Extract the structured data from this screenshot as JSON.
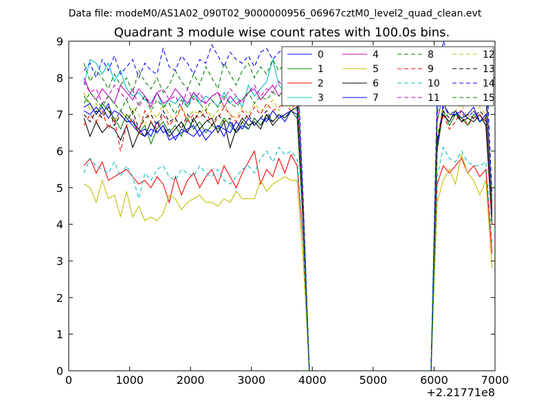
{
  "supertitle": "Data file: modeM0/AS1A02_090T02_9000000956_06967cztM0_level2_quad_clean.evt",
  "chart_data": {
    "type": "line",
    "title": "Quadrant 3 module wise count rates with 100.0s bins.",
    "xlabel": "",
    "ylabel": "",
    "x_offset_label": "+2.21771e8",
    "xlim": [
      0,
      7000
    ],
    "ylim": [
      0,
      9
    ],
    "xticks": [
      "0",
      "1000",
      "2000",
      "3000",
      "4000",
      "5000",
      "6000",
      "7000"
    ],
    "yticks": [
      "0",
      "1",
      "2",
      "3",
      "4",
      "5",
      "6",
      "7",
      "8",
      "9"
    ],
    "grid": false,
    "legend_position": "top-right",
    "x": [
      250,
      350,
      450,
      550,
      650,
      750,
      850,
      950,
      1050,
      1150,
      1250,
      1350,
      1450,
      1550,
      1650,
      1750,
      1850,
      1950,
      2050,
      2150,
      2250,
      2350,
      2450,
      2550,
      2650,
      2750,
      2850,
      2950,
      3050,
      3150,
      3250,
      3350,
      3450,
      3550,
      3650,
      3750,
      3850,
      3950,
      4050,
      4150,
      4250,
      4350,
      4450,
      4550,
      4650,
      4750,
      4850,
      4950,
      5050,
      5150,
      5250,
      5350,
      5450,
      5550,
      5650,
      5750,
      5850,
      5950,
      6050,
      6150,
      6250,
      6350,
      6450,
      6550,
      6650,
      6750,
      6850,
      6950
    ],
    "series": [
      {
        "name": "0",
        "color": "#0000ff",
        "dash": "solid",
        "values": [
          7.1,
          7.0,
          7.2,
          7.0,
          7.3,
          6.8,
          7.1,
          6.9,
          6.7,
          6.5,
          6.6,
          6.4,
          6.8,
          6.5,
          6.6,
          6.3,
          6.6,
          6.5,
          6.4,
          6.6,
          6.3,
          6.5,
          6.7,
          6.4,
          6.8,
          6.5,
          6.7,
          6.6,
          6.9,
          6.7,
          6.9,
          6.8,
          7.0,
          6.8,
          7.1,
          7.0,
          4.0,
          0,
          0,
          0,
          0,
          0,
          0,
          0,
          0,
          0,
          0,
          0,
          0,
          0,
          0,
          0,
          0,
          0,
          0,
          0,
          0,
          0,
          6.1,
          7.3,
          7.0,
          7.1,
          6.9,
          7.0,
          7.2,
          6.8,
          7.0,
          4.3
        ]
      },
      {
        "name": "1",
        "color": "#008000",
        "dash": "solid",
        "values": [
          7.5,
          7.3,
          7.0,
          7.3,
          7.1,
          6.9,
          6.6,
          7.0,
          6.8,
          6.5,
          6.7,
          6.2,
          6.6,
          6.8,
          6.5,
          6.7,
          6.4,
          6.9,
          6.6,
          6.8,
          6.5,
          6.7,
          6.6,
          6.9,
          6.7,
          6.5,
          6.8,
          6.6,
          6.9,
          6.7,
          7.0,
          6.8,
          7.0,
          6.9,
          7.1,
          6.9,
          4.1,
          0,
          0,
          0,
          0,
          0,
          0,
          0,
          0,
          0,
          0,
          0,
          0,
          0,
          0,
          0,
          0,
          0,
          0,
          0,
          0,
          0,
          6.0,
          7.1,
          6.7,
          7.0,
          6.9,
          6.7,
          7.0,
          6.8,
          6.9,
          4.2
        ]
      },
      {
        "name": "2",
        "color": "#ff0000",
        "dash": "solid",
        "values": [
          5.6,
          5.8,
          5.4,
          5.7,
          5.2,
          5.3,
          5.4,
          5.5,
          5.3,
          5.1,
          5.2,
          5.0,
          5.3,
          5.1,
          4.6,
          5.3,
          4.8,
          5.2,
          5.4,
          5.0,
          5.3,
          5.5,
          5.1,
          5.6,
          5.3,
          5.0,
          5.4,
          5.7,
          6.0,
          5.1,
          5.5,
          5.3,
          5.8,
          5.4,
          5.9,
          5.6,
          3.5,
          0,
          0,
          0,
          0,
          0,
          0,
          0,
          0,
          0,
          0,
          0,
          0,
          0,
          0,
          0,
          0,
          0,
          0,
          0,
          0,
          0,
          5.1,
          5.6,
          5.4,
          5.6,
          5.8,
          5.4,
          5.6,
          5.3,
          5.5,
          3.2
        ]
      },
      {
        "name": "3",
        "color": "#00bfbf",
        "dash": "solid",
        "values": [
          7.8,
          8.5,
          8.4,
          8.1,
          8.4,
          7.9,
          8.2,
          7.7,
          7.5,
          7.6,
          7.4,
          7.3,
          7.6,
          7.2,
          7.4,
          7.3,
          7.5,
          7.2,
          7.6,
          7.3,
          7.5,
          7.4,
          7.2,
          7.6,
          7.3,
          7.5,
          7.2,
          7.8,
          7.5,
          7.7,
          7.9,
          8.5,
          7.8,
          7.6,
          8.0,
          7.7,
          4.4,
          0,
          0,
          0,
          0,
          0,
          0,
          0,
          0,
          0,
          0,
          0,
          0,
          0,
          0,
          0,
          0,
          0,
          0,
          0,
          0,
          0,
          7.0,
          8.5,
          8.0,
          8.2,
          8.1,
          7.9,
          8.0,
          7.8,
          7.9,
          4.6
        ]
      },
      {
        "name": "4",
        "color": "#bf00bf",
        "dash": "solid",
        "values": [
          8.0,
          7.6,
          7.4,
          7.7,
          7.5,
          7.3,
          7.8,
          7.6,
          7.4,
          7.7,
          7.5,
          7.2,
          7.6,
          7.3,
          7.4,
          7.7,
          7.5,
          7.3,
          7.6,
          7.4,
          7.3,
          7.5,
          7.6,
          7.2,
          7.5,
          7.3,
          7.4,
          7.6,
          7.7,
          7.4,
          7.6,
          7.8,
          7.5,
          7.7,
          7.9,
          7.6,
          4.3,
          0,
          0,
          0,
          0,
          0,
          0,
          0,
          0,
          0,
          0,
          0,
          0,
          0,
          0,
          0,
          0,
          0,
          0,
          0,
          0,
          0,
          6.8,
          7.6,
          7.5,
          7.7,
          7.6,
          7.4,
          7.6,
          7.5,
          7.6,
          4.4
        ]
      },
      {
        "name": "5",
        "color": "#bfbf00",
        "dash": "solid",
        "values": [
          5.1,
          5.0,
          4.6,
          5.2,
          4.7,
          4.8,
          4.2,
          4.9,
          4.2,
          4.5,
          4.1,
          4.2,
          4.1,
          4.3,
          4.8,
          4.7,
          4.4,
          4.6,
          4.7,
          4.8,
          4.6,
          4.6,
          4.5,
          4.7,
          4.6,
          4.9,
          4.7,
          4.7,
          4.7,
          5.2,
          4.9,
          5.1,
          5.2,
          5.3,
          5.2,
          5.2,
          3.0,
          0,
          0,
          0,
          0,
          0,
          0,
          0,
          0,
          0,
          0,
          0,
          0,
          0,
          0,
          0,
          0,
          0,
          0,
          0,
          0,
          0,
          4.6,
          5.2,
          5.5,
          5.1,
          5.9,
          5.4,
          5.2,
          4.8,
          5.2,
          2.8
        ]
      },
      {
        "name": "6",
        "color": "#000000",
        "dash": "solid",
        "values": [
          6.9,
          6.4,
          6.8,
          6.5,
          6.7,
          6.6,
          6.3,
          6.7,
          6.1,
          6.5,
          6.4,
          6.8,
          6.5,
          6.7,
          6.4,
          6.6,
          6.8,
          6.5,
          6.9,
          6.6,
          6.8,
          6.9,
          6.5,
          6.8,
          6.1,
          6.6,
          6.9,
          6.7,
          6.8,
          6.6,
          7.0,
          6.7,
          6.9,
          7.0,
          7.1,
          7.2,
          4.1,
          0,
          0,
          0,
          0,
          0,
          0,
          0,
          0,
          0,
          0,
          0,
          0,
          0,
          0,
          0,
          0,
          0,
          0,
          0,
          0,
          0,
          6.3,
          7.0,
          6.8,
          7.1,
          6.8,
          6.9,
          6.8,
          7.0,
          6.7,
          4.0
        ]
      },
      {
        "name": "7",
        "color": "#0000ff",
        "dash": "solid",
        "values": [
          7.2,
          7.3,
          7.0,
          7.2,
          6.9,
          7.1,
          7.0,
          6.8,
          6.8,
          6.6,
          6.4,
          6.6,
          6.5,
          6.7,
          6.3,
          6.4,
          6.5,
          6.6,
          6.7,
          6.4,
          6.6,
          6.5,
          6.7,
          6.6,
          6.5,
          6.8,
          6.6,
          6.9,
          6.7,
          6.9,
          6.8,
          7.1,
          6.9,
          7.0,
          7.1,
          7.2,
          4.2,
          0,
          0,
          0,
          0,
          0,
          0,
          0,
          0,
          0,
          0,
          0,
          0,
          0,
          0,
          0,
          0,
          0,
          0,
          0,
          0,
          0,
          6.2,
          7.2,
          7.0,
          7.0,
          7.1,
          6.9,
          7.1,
          6.8,
          7.0,
          4.2
        ]
      },
      {
        "name": "8",
        "color": "#008000",
        "dash": "dashed",
        "values": [
          8.4,
          7.9,
          8.2,
          8.0,
          7.7,
          8.1,
          7.8,
          8.0,
          7.6,
          8.2,
          7.9,
          7.7,
          8.0,
          7.6,
          7.8,
          8.2,
          7.9,
          7.7,
          8.1,
          7.8,
          8.3,
          8.0,
          7.7,
          8.4,
          8.1,
          7.8,
          8.2,
          8.4,
          8.0,
          8.3,
          8.1,
          8.5,
          8.2,
          8.4,
          8.6,
          8.3,
          4.6,
          0,
          0,
          0,
          0,
          0,
          0,
          0,
          0,
          0,
          0,
          0,
          0,
          0,
          0,
          0,
          0,
          0,
          0,
          0,
          0,
          0,
          7.4,
          8.3,
          8.0,
          8.2,
          8.1,
          8.3,
          8.2,
          8.0,
          8.1,
          4.6
        ]
      },
      {
        "name": "9",
        "color": "#ff0000",
        "dash": "dashed",
        "values": [
          6.7,
          7.0,
          6.8,
          7.1,
          6.6,
          6.9,
          6.0,
          6.7,
          6.9,
          6.5,
          7.1,
          6.8,
          6.6,
          7.0,
          6.7,
          6.9,
          7.2,
          6.8,
          7.0,
          6.9,
          7.1,
          6.7,
          6.9,
          7.2,
          7.0,
          6.8,
          7.1,
          6.9,
          7.2,
          7.0,
          7.3,
          7.1,
          7.2,
          7.3,
          7.1,
          7.4,
          4.2,
          0,
          0,
          0,
          0,
          0,
          0,
          0,
          0,
          0,
          0,
          0,
          0,
          0,
          0,
          0,
          0,
          0,
          0,
          0,
          0,
          0,
          6.3,
          7.0,
          6.6,
          6.8,
          7.1,
          6.7,
          6.9,
          7.0,
          6.8,
          4.0
        ]
      },
      {
        "name": "10",
        "color": "#00bfbf",
        "dash": "dashed",
        "values": [
          5.4,
          5.8,
          5.6,
          5.5,
          5.4,
          5.7,
          5.3,
          5.6,
          5.3,
          4.7,
          5.4,
          5.2,
          5.5,
          5.6,
          5.3,
          5.2,
          5.5,
          5.4,
          5.3,
          5.6,
          5.4,
          5.3,
          5.5,
          5.2,
          5.1,
          5.3,
          5.5,
          5.6,
          5.4,
          5.8,
          6.0,
          5.7,
          6.1,
          5.9,
          6.0,
          5.8,
          3.6,
          0,
          0,
          0,
          0,
          0,
          0,
          0,
          0,
          0,
          0,
          0,
          0,
          0,
          0,
          0,
          0,
          0,
          0,
          0,
          0,
          0,
          5.3,
          6.1,
          5.8,
          5.7,
          6.0,
          5.7,
          5.6,
          5.6,
          5.7,
          3.5
        ]
      },
      {
        "name": "11",
        "color": "#bf00bf",
        "dash": "dashed",
        "values": [
          7.9,
          7.6,
          7.7,
          7.3,
          7.5,
          7.8,
          7.6,
          7.4,
          7.7,
          7.2,
          7.5,
          7.3,
          7.6,
          7.7,
          7.4,
          7.5,
          7.2,
          7.7,
          7.4,
          7.6,
          7.3,
          7.5,
          7.6,
          7.4,
          7.7,
          7.5,
          7.3,
          7.6,
          7.8,
          7.5,
          7.7,
          7.6,
          7.9,
          7.7,
          7.8,
          7.9,
          4.5,
          0,
          0,
          0,
          0,
          0,
          0,
          0,
          0,
          0,
          0,
          0,
          0,
          0,
          0,
          0,
          0,
          0,
          0,
          0,
          0,
          0,
          7.0,
          7.9,
          7.6,
          7.8,
          7.5,
          7.7,
          7.9,
          7.6,
          7.8,
          4.5
        ]
      },
      {
        "name": "12",
        "color": "#bfbf00",
        "dash": "dashed",
        "values": [
          7.6,
          7.1,
          7.3,
          7.0,
          7.2,
          6.8,
          7.1,
          6.9,
          7.2,
          7.0,
          6.7,
          7.1,
          6.9,
          7.3,
          7.0,
          6.8,
          7.2,
          6.9,
          7.1,
          7.0,
          7.2,
          6.9,
          7.1,
          7.3,
          7.0,
          6.9,
          7.2,
          7.0,
          7.3,
          7.1,
          7.2,
          7.4,
          7.1,
          7.3,
          7.2,
          7.1,
          4.3,
          0,
          0,
          0,
          0,
          0,
          0,
          0,
          0,
          0,
          0,
          0,
          0,
          0,
          0,
          0,
          0,
          0,
          0,
          0,
          0,
          0,
          6.4,
          7.2,
          7.0,
          7.1,
          7.3,
          6.9,
          7.1,
          7.2,
          7.0,
          4.2
        ]
      },
      {
        "name": "13",
        "color": "#000000",
        "dash": "dashed",
        "values": [
          7.0,
          6.8,
          7.1,
          6.9,
          7.2,
          6.7,
          7.0,
          6.8,
          7.1,
          6.6,
          6.9,
          7.0,
          6.7,
          7.1,
          6.8,
          6.9,
          6.6,
          7.0,
          6.8,
          7.1,
          6.9,
          6.7,
          7.0,
          6.8,
          6.9,
          6.5,
          6.8,
          7.0,
          6.7,
          6.9,
          7.1,
          6.8,
          7.0,
          6.9,
          7.1,
          7.2,
          4.2,
          0,
          0,
          0,
          0,
          0,
          0,
          0,
          0,
          0,
          0,
          0,
          0,
          0,
          0,
          0,
          0,
          0,
          0,
          0,
          0,
          0,
          6.3,
          7.1,
          6.9,
          7.0,
          6.8,
          7.0,
          6.9,
          7.1,
          6.9,
          4.1
        ]
      },
      {
        "name": "14",
        "color": "#0000ff",
        "dash": "dashed",
        "values": [
          8.2,
          8.4,
          8.0,
          8.5,
          8.2,
          8.6,
          8.1,
          8.3,
          8.5,
          8.0,
          8.4,
          8.2,
          8.1,
          8.8,
          8.3,
          8.2,
          8.6,
          8.4,
          8.1,
          8.5,
          8.4,
          8.9,
          8.6,
          8.3,
          8.7,
          8.5,
          8.4,
          8.6,
          8.3,
          8.7,
          8.8,
          8.5,
          8.7,
          8.8,
          8.6,
          8.7,
          4.7,
          0,
          0,
          0,
          0,
          0,
          0,
          0,
          0,
          0,
          0,
          0,
          0,
          0,
          0,
          0,
          0,
          0,
          0,
          0,
          0,
          0,
          7.6,
          9.0,
          8.6,
          8.8,
          8.5,
          8.7,
          8.6,
          8.8,
          8.7,
          4.8
        ]
      },
      {
        "name": "15",
        "color": "#008000",
        "dash": "dashed",
        "values": [
          7.3,
          7.6,
          7.4,
          7.2,
          7.5,
          7.3,
          7.1,
          7.4,
          7.0,
          7.3,
          7.5,
          7.1,
          7.4,
          7.2,
          7.3,
          7.0,
          7.4,
          7.2,
          7.5,
          7.3,
          7.1,
          7.4,
          7.2,
          7.5,
          7.3,
          7.2,
          7.4,
          7.6,
          7.3,
          7.5,
          7.4,
          7.6,
          7.5,
          7.7,
          7.5,
          7.6,
          4.4,
          0,
          0,
          0,
          0,
          0,
          0,
          0,
          0,
          0,
          0,
          0,
          0,
          0,
          0,
          0,
          0,
          0,
          0,
          0,
          0,
          0,
          6.8,
          7.6,
          7.3,
          7.5,
          7.4,
          7.6,
          7.5,
          7.3,
          7.4,
          4.4
        ]
      }
    ]
  }
}
